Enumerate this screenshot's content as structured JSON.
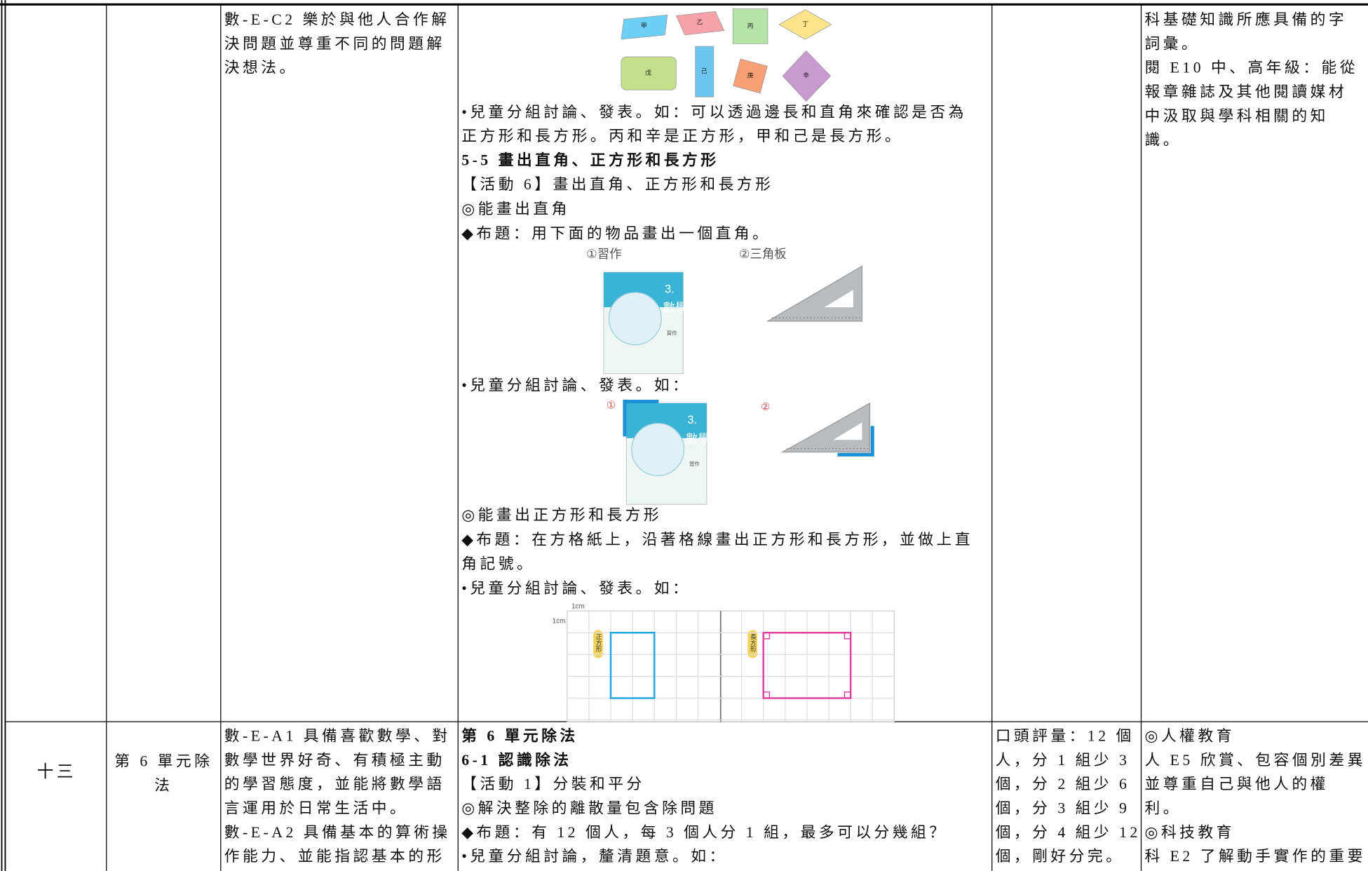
{
  "table": {
    "rows": [
      {
        "competency": [
          "數-E-C2 樂於與他人合作解",
          "決問題並尊重不同的問題解",
          "決想法。"
        ],
        "activity": {
          "shape_labels": [
            "甲",
            "乙",
            "丙",
            "丁",
            "戊",
            "己",
            "庚",
            "辛"
          ],
          "discussion_1": [
            "•兒童分組討論、發表。如：可以透過邊長和直角來確認是否為",
            "正方形和長方形。丙和辛是正方形，甲和己是長方形。"
          ],
          "section_title": "5-5 畫出直角、正方形和長方形",
          "activity_title": "【活動 6】畫出直角、正方形和長方形",
          "goal_1": "◎能畫出直角",
          "task_1": "◆布題：用下面的物品畫出一個直角。",
          "tool_labels": [
            "①習作",
            "②三角板"
          ],
          "book_cover": [
            "3.",
            "數學",
            "習作"
          ],
          "discussion_2": "•兒童分組討論、發表。如：",
          "answer_labels": [
            "①",
            "②"
          ],
          "goal_2": "◎能畫出正方形和長方形",
          "task_2": [
            "◆布題：在方格紙上，沿著格線畫出正方形和長方形，並做上直",
            "角記號。"
          ],
          "discussion_3": "•兒童分組討論、發表。如：",
          "grid_labels": [
            "1cm",
            "1cm",
            "正方形",
            "長方形"
          ]
        },
        "issues": [
          "科基礎知識所應具備的字",
          "詞彙。",
          "閱 E10 中、高年級：能從",
          "報章雜誌及其他閱讀媒材",
          "中汲取與學科相關的知",
          "識。"
        ]
      },
      {
        "week": "十三",
        "unit": [
          "第 6 單元除",
          "法"
        ],
        "competency": [
          "數-E-A1 具備喜歡數學、對",
          "數學世界好奇、有積極主動",
          "的學習態度，並能將數學語",
          "言運用於日常生活中。",
          "數-E-A2 具備基本的算術操",
          "作能力、並能指認基本的形"
        ],
        "activity": {
          "headings": [
            "第 6 單元除法",
            "6-1 認識除法"
          ],
          "lines": [
            "【活動 1】分裝和平分",
            "◎解決整除的離散量包含除問題",
            "◆布題：有 12 個人，每 3 個人分 1 組，最多可以分幾組？",
            "•兒童分組討論，釐清題意。如："
          ]
        },
        "assessment": [
          "口頭評量：12 個",
          "人，分 1 組少 3",
          "個，分 2 組少 6",
          "個，分 3 組少 9",
          "個，分 4 組少 12",
          "個，剛好分完。"
        ],
        "issues": [
          "◎人權教育",
          "人 E5 欣賞、包容個別差異",
          "並尊重自己與他人的權",
          "利。",
          "◎科技教育",
          "科 E2 了解動手實作的重要"
        ]
      }
    ]
  }
}
